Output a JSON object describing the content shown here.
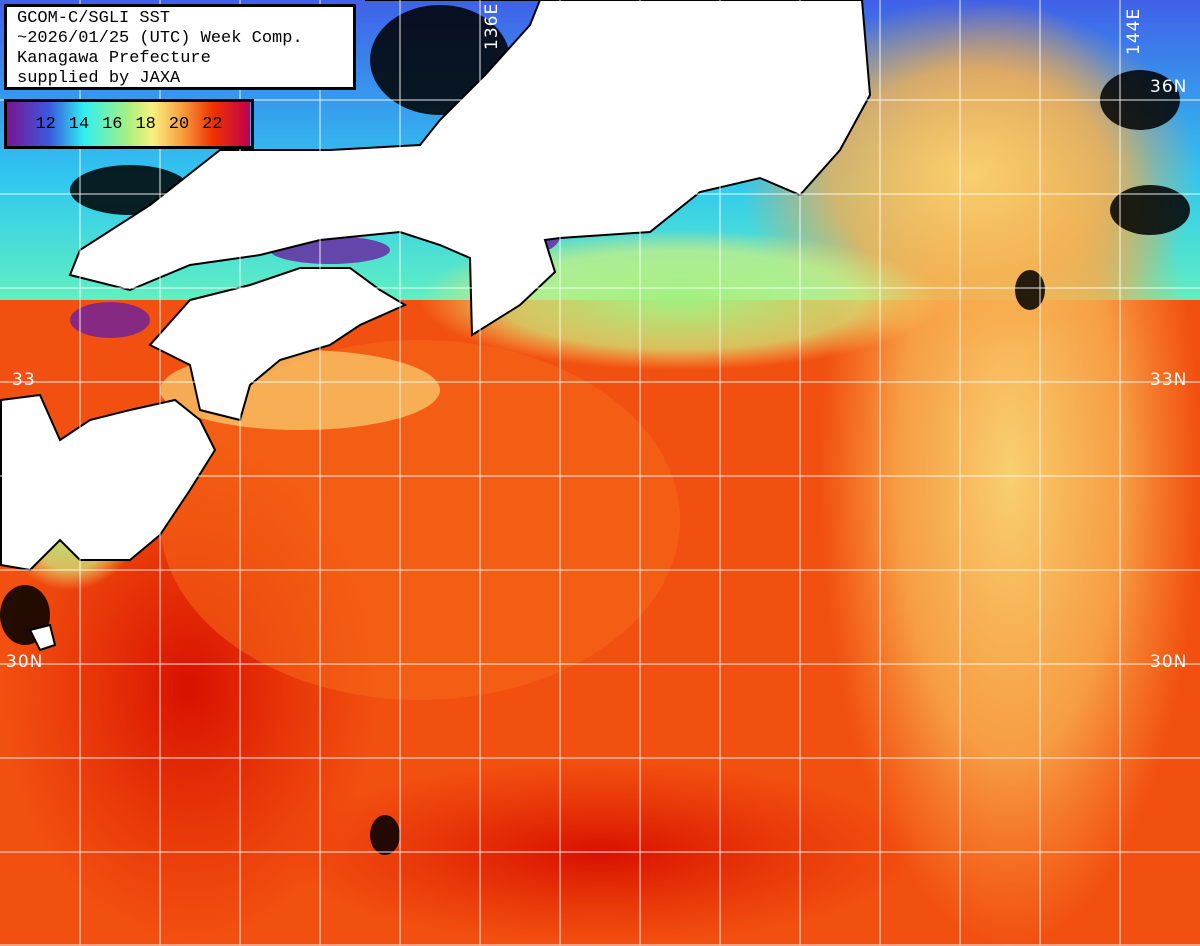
{
  "title": {
    "lines": [
      "GCOM-C/SGLI SST",
      "~2026/01/25 (UTC) Week Comp.",
      "Kanagawa Prefecture",
      "supplied by JAXA"
    ]
  },
  "legend": {
    "ticks": [
      "12",
      "14",
      "16",
      "18",
      "20",
      "22"
    ],
    "colors": [
      "#7a1490",
      "#3a5ae0",
      "#30f0f0",
      "#a8f080",
      "#f8f080",
      "#f8a040",
      "#f03000",
      "#c00050"
    ]
  },
  "grid": {
    "lon_labels": [
      "136E",
      "144E"
    ],
    "lat_labels_right": [
      "36N",
      "33N",
      "30N"
    ],
    "lat_labels_left": [
      "33",
      "30N"
    ]
  }
}
